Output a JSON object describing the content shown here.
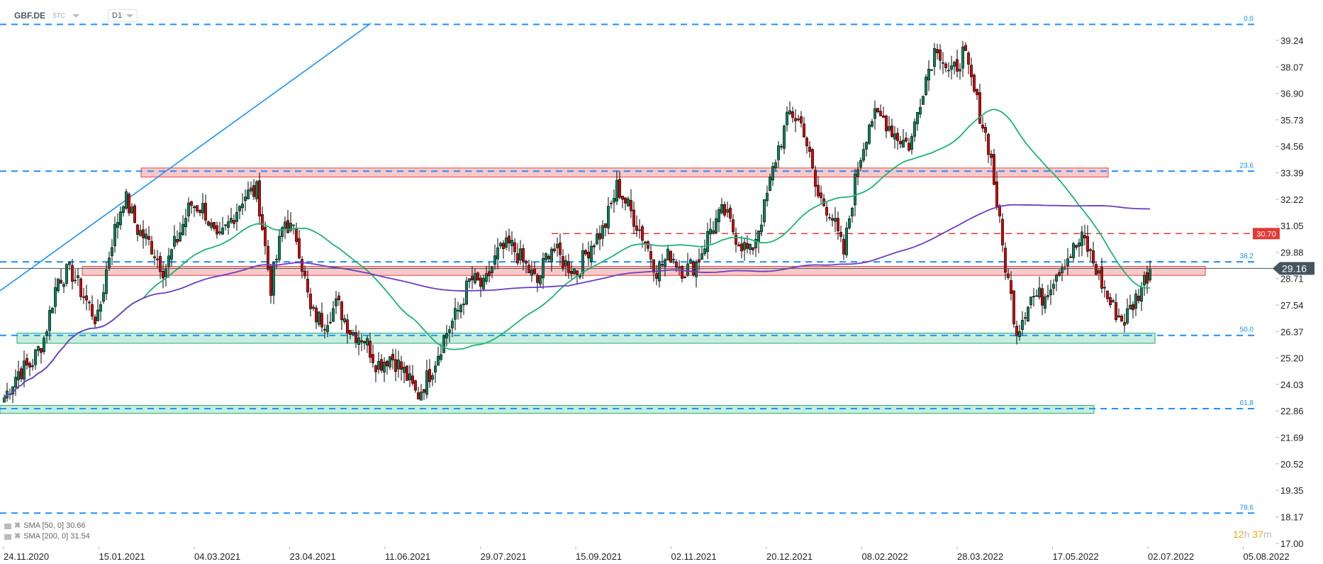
{
  "header": {
    "symbol": "GBF.DE",
    "type": "STC",
    "timeframe": "D1"
  },
  "legend": [
    {
      "label": "SMA [50, 0] 30.66",
      "color": "#1db374"
    },
    {
      "label": "SMA [200, 0] 31.54",
      "color": "#6a3dc2"
    }
  ],
  "timer": {
    "hours": "12",
    "h": "h",
    "minutes": "37",
    "m": "m"
  },
  "colors": {
    "up": "#00845a",
    "down": "#d40000",
    "fib": "#1e90ff",
    "sma50": "#1db374",
    "sma200": "#6a3dc2",
    "resistance_zone": "#f8c9c9",
    "support_zone": "#c6eedd",
    "level": "#e53935",
    "price_tag": "#455560"
  },
  "chart_data": {
    "type": "candlestick",
    "x_ticks": [
      "24.11.2020",
      "15.01.2021",
      "04.03.2021",
      "23.04.2021",
      "11.06.2021",
      "29.07.2021",
      "15.09.2021",
      "02.11.2021",
      "20.12.2021",
      "08.02.2022",
      "28.03.2022",
      "17.05.2022",
      "02.07.2022",
      "05.08.2022"
    ],
    "y_ticks": [
      "39.24",
      "38.07",
      "36.90",
      "35.73",
      "34.56",
      "33.39",
      "32.22",
      "31.05",
      "29.88",
      "28.71",
      "27.54",
      "26.37",
      "25.20",
      "24.03",
      "22.86",
      "21.69",
      "20.52",
      "19.35",
      "18.17",
      "17.00"
    ],
    "ylim": [
      17.0,
      40.2
    ],
    "approx_closes": [
      23.45,
      24.57,
      24.9,
      26.1,
      28.7,
      29.05,
      27.9,
      26.8,
      30.2,
      32.4,
      30.9,
      30.2,
      29.05,
      30.5,
      32.0,
      31.8,
      30.2,
      31.3,
      32.4,
      32.6,
      28.3,
      31.3,
      30.5,
      27.2,
      26.8,
      27.6,
      26.4,
      26.1,
      24.9,
      25.3,
      24.6,
      23.5,
      24.6,
      26.1,
      27.2,
      28.7,
      28.3,
      29.8,
      30.2,
      29.4,
      28.5,
      30.2,
      29.4,
      29.05,
      30.2,
      30.9,
      32.8,
      31.7,
      30.5,
      29.05,
      29.8,
      29.05,
      29.4,
      30.9,
      31.7,
      30.5,
      29.8,
      31.7,
      34.3,
      36.1,
      35.4,
      32.4,
      31.7,
      29.8,
      33.5,
      35.8,
      35.8,
      35.0,
      34.6,
      37.3,
      39.1,
      37.6,
      38.7,
      36.5,
      34.3,
      29.8,
      26.4,
      27.9,
      27.9,
      29.05,
      29.8,
      30.5,
      29.05,
      27.6,
      26.8,
      27.9,
      29.16
    ],
    "current_price": "29.16",
    "horizontal_level": {
      "value": "30.70"
    },
    "fibonacci": [
      {
        "label": "0.0",
        "value": 39.95
      },
      {
        "label": "23.6",
        "value": 33.46
      },
      {
        "label": "38.2",
        "value": 29.45
      },
      {
        "label": "50.0",
        "value": 26.2
      },
      {
        "label": "61.8",
        "value": 22.96
      },
      {
        "label": "78.6",
        "value": 18.34
      }
    ],
    "zones": [
      {
        "kind": "resistance",
        "low": 33.2,
        "high": 33.6
      },
      {
        "kind": "resistance",
        "low": 28.85,
        "high": 29.25
      },
      {
        "kind": "support",
        "low": 25.85,
        "high": 26.3
      },
      {
        "kind": "support",
        "low": 22.75,
        "high": 23.1
      }
    ],
    "indicators": [
      "SMA 50",
      "SMA 200"
    ]
  }
}
